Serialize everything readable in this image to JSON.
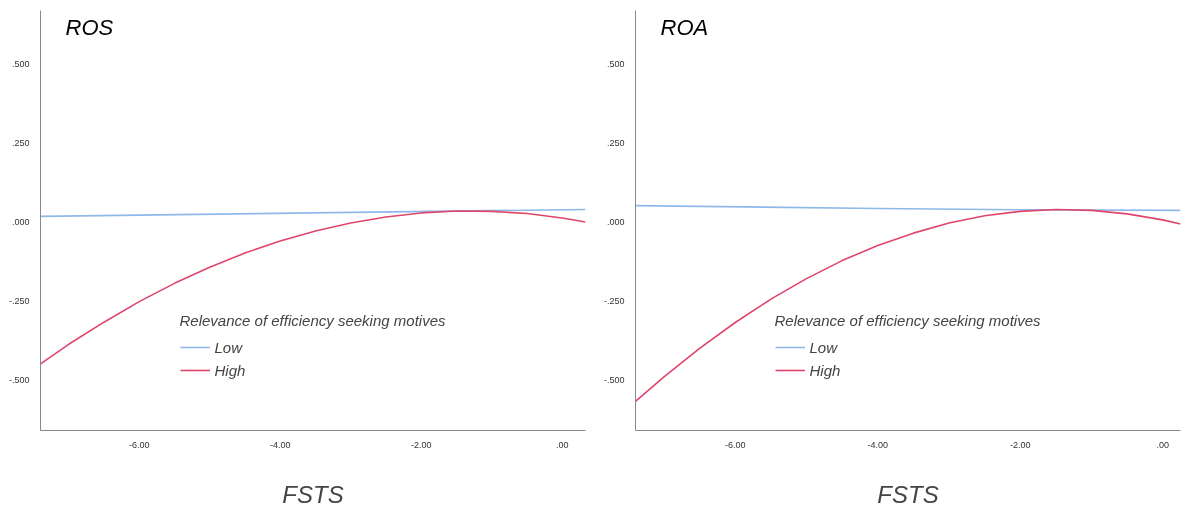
{
  "chart_data": [
    {
      "type": "line",
      "title": "ROS",
      "xlabel": "FSTS",
      "legend_title": "Relevance of efficiency seeking motives",
      "legend": "bottom",
      "grid": false,
      "marker": "none",
      "line_style": "solid",
      "xlim": [
        -7.4,
        0.33
      ],
      "xticks": [
        {
          "value": -6,
          "label": "-6.00"
        },
        {
          "value": -4,
          "label": "-4.00"
        },
        {
          "value": -2,
          "label": "-2.00"
        },
        {
          "value": 0,
          "label": ".00"
        }
      ],
      "ylim": [
        -0.66,
        0.67
      ],
      "yticks": [
        {
          "value": -0.5,
          "label": "-.500"
        },
        {
          "value": -0.25,
          "label": "-.250"
        },
        {
          "value": 0,
          "label": ".000"
        },
        {
          "value": 0.25,
          "label": ".250"
        },
        {
          "value": 0.5,
          "label": ".500"
        }
      ],
      "series": [
        {
          "name": "Low",
          "color": "#8fb8e8",
          "x": [
            -7.4,
            0.33
          ],
          "values": [
            0.018,
            0.04
          ]
        },
        {
          "name": "High",
          "color": "#e0456a",
          "x": [
            -7.4,
            -7,
            -6.5,
            -6,
            -5.5,
            -5,
            -4.5,
            -4,
            -3.5,
            -3,
            -2.5,
            -2,
            -1.5,
            -1,
            -0.5,
            0,
            0.33
          ],
          "values": [
            -0.449,
            -0.387,
            -0.317,
            -0.252,
            -0.194,
            -0.143,
            -0.098,
            -0.06,
            -0.028,
            -0.003,
            0.016,
            0.029,
            0.035,
            0.034,
            0.027,
            0.013,
            0.0
          ]
        }
      ]
    },
    {
      "type": "line",
      "title": "ROA",
      "xlabel": "FSTS",
      "legend_title": "Relevance of efficiency seeking motives",
      "legend": "bottom",
      "grid": false,
      "marker": "none",
      "line_style": "solid",
      "xlim": [
        -7.4,
        0.25
      ],
      "xticks": [
        {
          "value": -6,
          "label": "-6.00"
        },
        {
          "value": -4,
          "label": "-4.00"
        },
        {
          "value": -2,
          "label": "-2.00"
        },
        {
          "value": 0,
          "label": ".00"
        }
      ],
      "ylim": [
        -0.66,
        0.67
      ],
      "yticks": [
        {
          "value": -0.5,
          "label": "-.500"
        },
        {
          "value": -0.25,
          "label": "-.250"
        },
        {
          "value": 0,
          "label": ".000"
        },
        {
          "value": 0.25,
          "label": ".250"
        },
        {
          "value": 0.5,
          "label": ".500"
        }
      ],
      "series": [
        {
          "name": "Low",
          "color": "#8fb8e8",
          "x": [
            -7.4,
            -4,
            -2,
            0.25
          ],
          "values": [
            0.052,
            0.043,
            0.039,
            0.037
          ]
        },
        {
          "name": "High",
          "color": "#e0456a",
          "x": [
            -7.4,
            -7,
            -6.5,
            -6,
            -5.5,
            -5,
            -4.5,
            -4,
            -3.5,
            -3,
            -2.5,
            -2,
            -1.5,
            -1,
            -0.5,
            0,
            0.25
          ],
          "values": [
            -0.568,
            -0.49,
            -0.4,
            -0.318,
            -0.244,
            -0.179,
            -0.122,
            -0.074,
            -0.035,
            -0.003,
            0.02,
            0.034,
            0.04,
            0.037,
            0.026,
            0.007,
            -0.006
          ]
        }
      ]
    }
  ]
}
